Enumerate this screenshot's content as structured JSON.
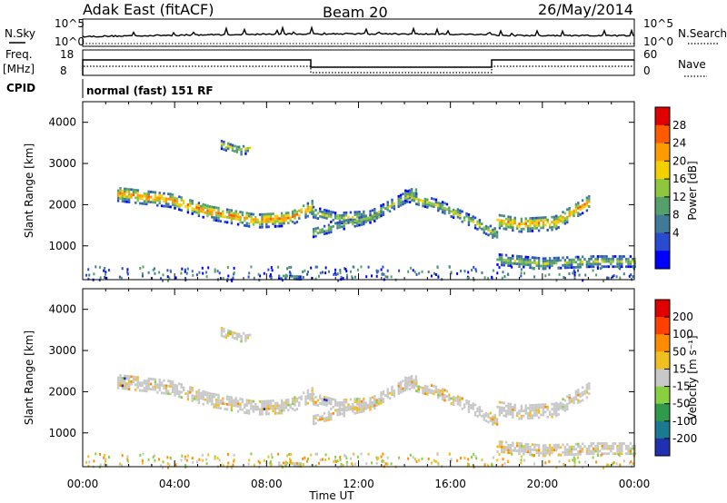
{
  "header": {
    "station": "Adak East (fitACF)",
    "beam": "Beam 20",
    "date": "26/May/2014"
  },
  "scalar_panels": {
    "nsky_label": "N.Sky",
    "nsearch_label": "N.Search",
    "nsky_ticks": [
      "10^5",
      "10^0"
    ],
    "freq_label": "Freq.",
    "freq_unit": "[MHz]",
    "freq_ticks": [
      "18",
      "8"
    ],
    "nave_label": "Nave",
    "nave_ticks": [
      "60",
      "0"
    ],
    "cpid_label": "CPID",
    "cpid_value": "normal (fast) 151 RF"
  },
  "colorbars": {
    "power": {
      "label": "Power [dB]",
      "ticks": [
        "28",
        "24",
        "20",
        "16",
        "12",
        "8",
        "4"
      ],
      "colors": [
        "#0000ff",
        "#2a4bd0",
        "#3f7a99",
        "#55a06a",
        "#8ec63f",
        "#f5d000",
        "#ff9a00",
        "#ff5a00",
        "#e00000"
      ]
    },
    "velocity": {
      "label": "Velocity [m s⁻¹]",
      "ticks": [
        "200",
        "100",
        "50",
        "15",
        "-15",
        "-50",
        "-100",
        "-200"
      ],
      "colors": [
        "#2030b0",
        "#1a7a90",
        "#2f9a4a",
        "#88d040",
        "#c8c8c8",
        "#f0c020",
        "#ff8c00",
        "#ff4000",
        "#e00000"
      ]
    }
  },
  "chart_data": [
    {
      "type": "heatmap",
      "name": "power-panel",
      "ylabel": "Slant Range [km]",
      "xlabel": "",
      "x_ticks": [
        "00:00",
        "04:00",
        "08:00",
        "12:00",
        "16:00",
        "20:00",
        "00:00"
      ],
      "y_ticks": [
        "4000",
        "3000",
        "2000",
        "1000"
      ],
      "xlim_hours": [
        0,
        24
      ],
      "ylim_km": [
        180,
        4500
      ],
      "bands": [
        {
          "x": [
            1.5,
            3.8,
            5.5,
            7.5,
            9.0,
            10.0
          ],
          "y": [
            2300,
            2150,
            1850,
            1650,
            1700,
            2000
          ],
          "width_km": 350,
          "intensity": 0.9
        },
        {
          "x": [
            10.0,
            11.0,
            12.5,
            13.5,
            14.5
          ],
          "y": [
            1850,
            1700,
            1750,
            2050,
            2350
          ],
          "width_km": 250,
          "intensity": 0.5
        },
        {
          "x": [
            10.0,
            11.0,
            12.5,
            13.0
          ],
          "y": [
            1350,
            1500,
            1700,
            1800
          ],
          "width_km": 200,
          "intensity": 0.55
        },
        {
          "x": [
            14.0,
            15.5,
            17.0,
            18.0
          ],
          "y": [
            2250,
            2000,
            1600,
            1300
          ],
          "width_km": 250,
          "intensity": 0.55
        },
        {
          "x": [
            18.0,
            19.0,
            20.5,
            22.0
          ],
          "y": [
            1650,
            1550,
            1600,
            2100
          ],
          "width_km": 350,
          "intensity": 0.85
        },
        {
          "x": [
            18.0,
            20.0,
            22.0,
            24.0
          ],
          "y": [
            700,
            600,
            650,
            650
          ],
          "width_km": 250,
          "intensity": 0.5
        },
        {
          "x": [
            6.0,
            6.7,
            7.3
          ],
          "y": [
            3500,
            3350,
            3400
          ],
          "width_km": 220,
          "intensity": 0.55
        },
        {
          "x": [
            8.5,
            9.5
          ],
          "y": [
            300,
            280
          ],
          "width_km": 120,
          "intensity": 0.3
        }
      ]
    },
    {
      "type": "heatmap",
      "name": "velocity-panel",
      "ylabel": "Slant Range [km]",
      "xlabel": "Time UT",
      "x_ticks": [
        "00:00",
        "04:00",
        "08:00",
        "12:00",
        "16:00",
        "20:00",
        "00:00"
      ],
      "y_ticks": [
        "4000",
        "3000",
        "2000",
        "1000"
      ],
      "xlim_hours": [
        0,
        24
      ],
      "ylim_km": [
        180,
        4500
      ],
      "note": "same echo footprint as power panel; mostly low velocity (grey) with orange/green speckle"
    }
  ]
}
